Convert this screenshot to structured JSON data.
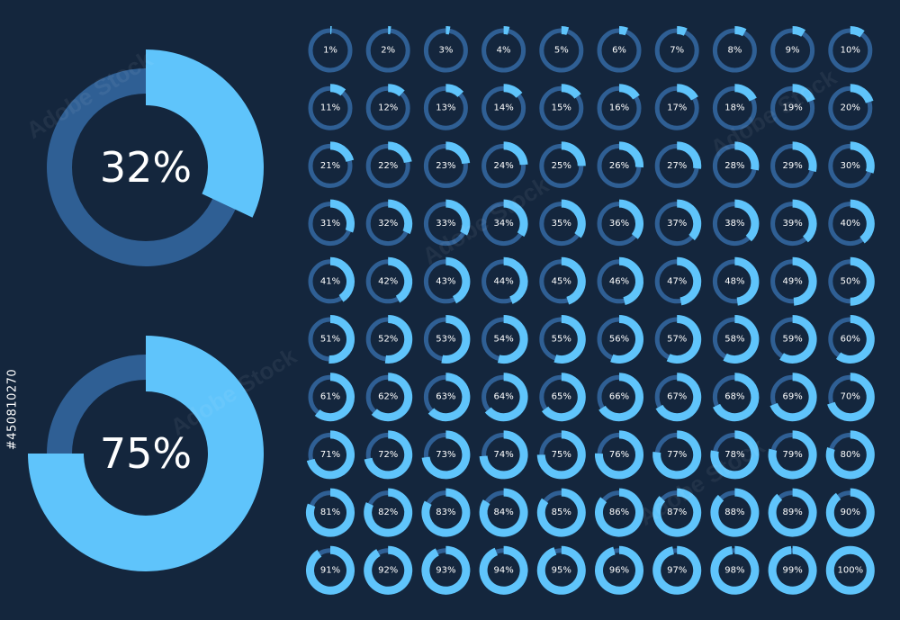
{
  "colors": {
    "background": "#14263d",
    "track": "#2f5f94",
    "fill": "#5fc4fb",
    "text": "#ffffff"
  },
  "watermark": "Adobe Stock",
  "side_id": "#450810270",
  "large_rings": [
    {
      "value": 32,
      "label": "32%"
    },
    {
      "value": 75,
      "label": "75%"
    }
  ],
  "grid": [
    {
      "value": 1,
      "label": "1%"
    },
    {
      "value": 2,
      "label": "2%"
    },
    {
      "value": 3,
      "label": "3%"
    },
    {
      "value": 4,
      "label": "4%"
    },
    {
      "value": 5,
      "label": "5%"
    },
    {
      "value": 6,
      "label": "6%"
    },
    {
      "value": 7,
      "label": "7%"
    },
    {
      "value": 8,
      "label": "8%"
    },
    {
      "value": 9,
      "label": "9%"
    },
    {
      "value": 10,
      "label": "10%"
    },
    {
      "value": 11,
      "label": "11%"
    },
    {
      "value": 12,
      "label": "12%"
    },
    {
      "value": 13,
      "label": "13%"
    },
    {
      "value": 14,
      "label": "14%"
    },
    {
      "value": 15,
      "label": "15%"
    },
    {
      "value": 16,
      "label": "16%"
    },
    {
      "value": 17,
      "label": "17%"
    },
    {
      "value": 18,
      "label": "18%"
    },
    {
      "value": 19,
      "label": "19%"
    },
    {
      "value": 20,
      "label": "20%"
    },
    {
      "value": 21,
      "label": "21%"
    },
    {
      "value": 22,
      "label": "22%"
    },
    {
      "value": 23,
      "label": "23%"
    },
    {
      "value": 24,
      "label": "24%"
    },
    {
      "value": 25,
      "label": "25%"
    },
    {
      "value": 26,
      "label": "26%"
    },
    {
      "value": 27,
      "label": "27%"
    },
    {
      "value": 28,
      "label": "28%"
    },
    {
      "value": 29,
      "label": "29%"
    },
    {
      "value": 30,
      "label": "30%"
    },
    {
      "value": 31,
      "label": "31%"
    },
    {
      "value": 32,
      "label": "32%"
    },
    {
      "value": 33,
      "label": "33%"
    },
    {
      "value": 34,
      "label": "34%"
    },
    {
      "value": 35,
      "label": "35%"
    },
    {
      "value": 36,
      "label": "36%"
    },
    {
      "value": 37,
      "label": "37%"
    },
    {
      "value": 38,
      "label": "38%"
    },
    {
      "value": 39,
      "label": "39%"
    },
    {
      "value": 40,
      "label": "40%"
    },
    {
      "value": 41,
      "label": "41%"
    },
    {
      "value": 42,
      "label": "42%"
    },
    {
      "value": 43,
      "label": "43%"
    },
    {
      "value": 44,
      "label": "44%"
    },
    {
      "value": 45,
      "label": "45%"
    },
    {
      "value": 46,
      "label": "46%"
    },
    {
      "value": 47,
      "label": "47%"
    },
    {
      "value": 48,
      "label": "48%"
    },
    {
      "value": 49,
      "label": "49%"
    },
    {
      "value": 50,
      "label": "50%"
    },
    {
      "value": 51,
      "label": "51%"
    },
    {
      "value": 52,
      "label": "52%"
    },
    {
      "value": 53,
      "label": "53%"
    },
    {
      "value": 54,
      "label": "54%"
    },
    {
      "value": 55,
      "label": "55%"
    },
    {
      "value": 56,
      "label": "56%"
    },
    {
      "value": 57,
      "label": "57%"
    },
    {
      "value": 58,
      "label": "58%"
    },
    {
      "value": 59,
      "label": "59%"
    },
    {
      "value": 60,
      "label": "60%"
    },
    {
      "value": 61,
      "label": "61%"
    },
    {
      "value": 62,
      "label": "62%"
    },
    {
      "value": 63,
      "label": "63%"
    },
    {
      "value": 64,
      "label": "64%"
    },
    {
      "value": 65,
      "label": "65%"
    },
    {
      "value": 66,
      "label": "66%"
    },
    {
      "value": 67,
      "label": "67%"
    },
    {
      "value": 68,
      "label": "68%"
    },
    {
      "value": 69,
      "label": "69%"
    },
    {
      "value": 70,
      "label": "70%"
    },
    {
      "value": 71,
      "label": "71%"
    },
    {
      "value": 72,
      "label": "72%"
    },
    {
      "value": 73,
      "label": "73%"
    },
    {
      "value": 74,
      "label": "74%"
    },
    {
      "value": 75,
      "label": "75%"
    },
    {
      "value": 76,
      "label": "76%"
    },
    {
      "value": 77,
      "label": "77%"
    },
    {
      "value": 78,
      "label": "78%"
    },
    {
      "value": 79,
      "label": "79%"
    },
    {
      "value": 80,
      "label": "80%"
    },
    {
      "value": 81,
      "label": "81%"
    },
    {
      "value": 82,
      "label": "82%"
    },
    {
      "value": 83,
      "label": "83%"
    },
    {
      "value": 84,
      "label": "84%"
    },
    {
      "value": 85,
      "label": "85%"
    },
    {
      "value": 86,
      "label": "86%"
    },
    {
      "value": 87,
      "label": "87%"
    },
    {
      "value": 88,
      "label": "88%"
    },
    {
      "value": 89,
      "label": "89%"
    },
    {
      "value": 90,
      "label": "90%"
    },
    {
      "value": 91,
      "label": "91%"
    },
    {
      "value": 92,
      "label": "92%"
    },
    {
      "value": 93,
      "label": "93%"
    },
    {
      "value": 94,
      "label": "94%"
    },
    {
      "value": 95,
      "label": "95%"
    },
    {
      "value": 96,
      "label": "96%"
    },
    {
      "value": 97,
      "label": "97%"
    },
    {
      "value": 98,
      "label": "98%"
    },
    {
      "value": 99,
      "label": "99%"
    },
    {
      "value": 100,
      "label": "100%"
    }
  ]
}
